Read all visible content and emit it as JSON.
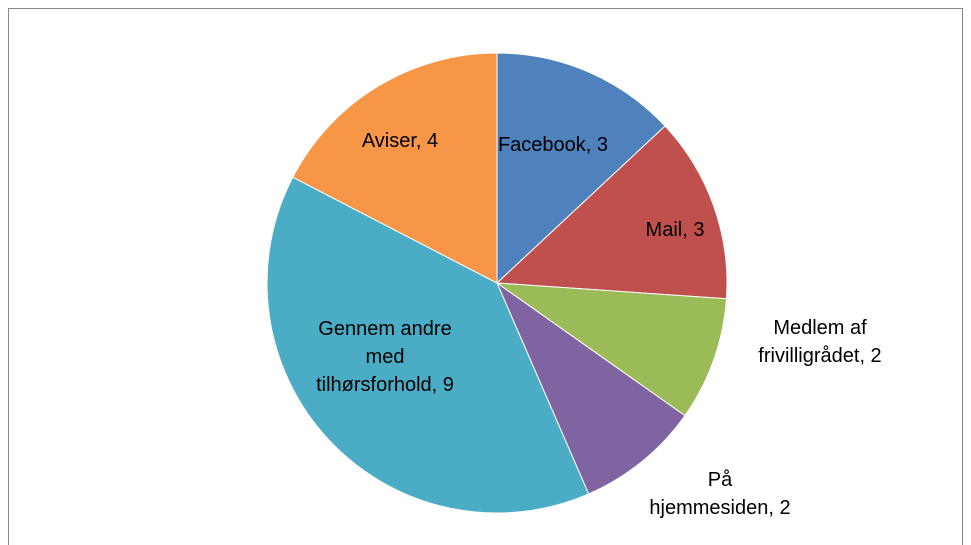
{
  "chart_data": {
    "type": "pie",
    "values": [
      3,
      3,
      2,
      2,
      9,
      4
    ],
    "value_labels": [
      "Facebook, 3",
      "Mail, 3",
      "Medlem af\nfrivilligrådet, 2",
      "På\nhjemmesiden, 2",
      "Gennem andre\nmed\ntilhørsforhold, 9",
      "Aviser, 4"
    ],
    "colors": [
      "#4f81bd",
      "#c0504d",
      "#9bbb59",
      "#8064a2",
      "#4bacc6",
      "#f79646"
    ],
    "start_angle": 0,
    "direction": "clockwise"
  }
}
